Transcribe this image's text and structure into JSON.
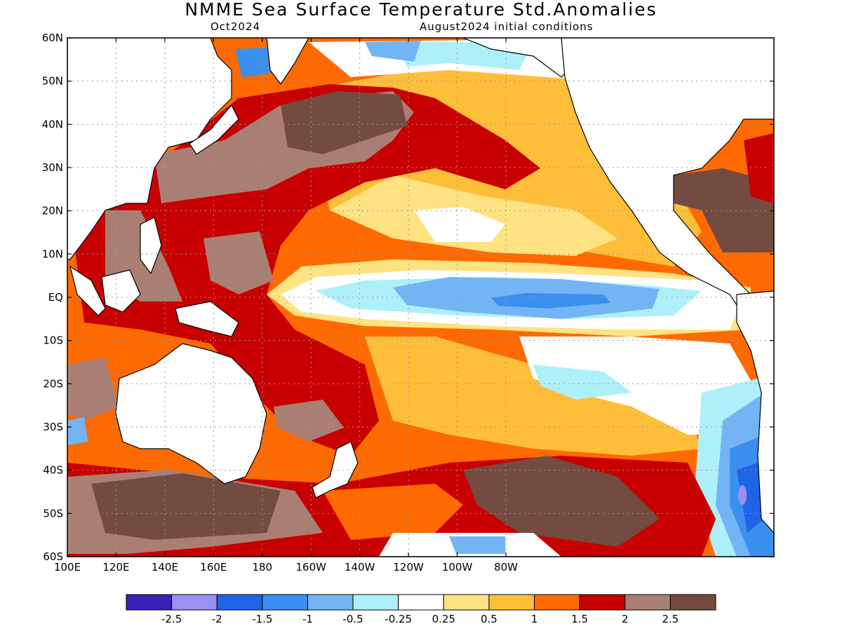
{
  "title": "NMME Sea Surface Temperature Std.Anomalies",
  "subtitle_left": "Oct2024",
  "subtitle_right": "August2024 initial conditions",
  "lat_labels": [
    "60N",
    "50N",
    "40N",
    "30N",
    "20N",
    "10N",
    "EQ",
    "10S",
    "20S",
    "30S",
    "40S",
    "50S",
    "60S"
  ],
  "lon_labels": [
    "100E",
    "120E",
    "140E",
    "160E",
    "180",
    "160W",
    "140W",
    "120W",
    "100W",
    "80W"
  ],
  "colorbar": {
    "colors": [
      "#3a1fb8",
      "#9c8ff5",
      "#1f64e6",
      "#3a8ff0",
      "#73b4f5",
      "#aef0fa",
      "#ffffff",
      "#ffe382",
      "#ffbe3a",
      "#ff6a00",
      "#c80000",
      "#aa7f73",
      "#734b41"
    ],
    "labels": [
      "-2.5",
      "-2",
      "-1.5",
      "-1",
      "-0.5",
      "-0.25",
      "0.25",
      "0.5",
      "1",
      "1.5",
      "2",
      "2.5"
    ]
  },
  "legend_colors": {
    "land": "#ffffff",
    "grid": "#999999"
  }
}
